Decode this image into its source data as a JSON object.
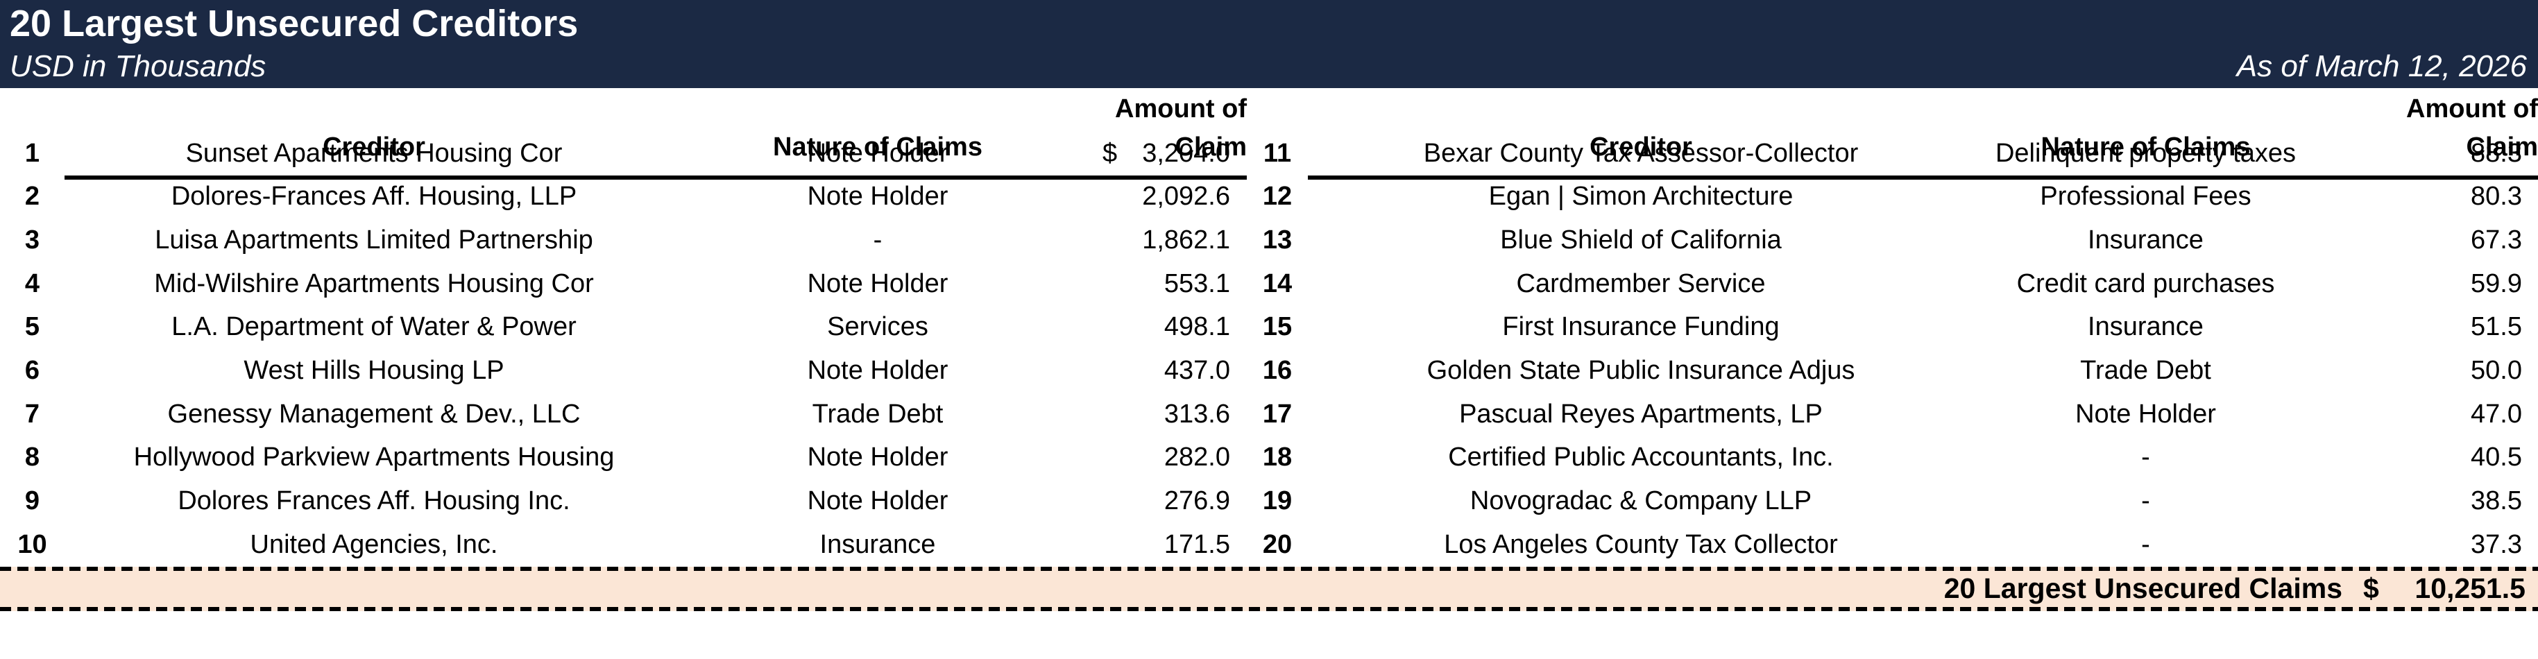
{
  "header": {
    "title": "20 Largest Unsecured Creditors",
    "subtitle": "USD in Thousands",
    "as_of": "As of March 12, 2026"
  },
  "columns": {
    "creditor": "Creditor",
    "nature": "Nature of Claims",
    "amount_line1": "Amount of",
    "amount_line2": "Claim"
  },
  "left_rows": [
    {
      "num": "1",
      "creditor": "Sunset Apartments Housing Cor",
      "nature": "Note Holder",
      "currency": "$",
      "amount": "3,204.0"
    },
    {
      "num": "2",
      "creditor": "Dolores-Frances Aff. Housing, LLP",
      "nature": "Note Holder",
      "currency": "",
      "amount": "2,092.6"
    },
    {
      "num": "3",
      "creditor": "Luisa Apartments Limited Partnership",
      "nature": "-",
      "currency": "",
      "amount": "1,862.1"
    },
    {
      "num": "4",
      "creditor": "Mid-Wilshire Apartments Housing Cor",
      "nature": "Note Holder",
      "currency": "",
      "amount": "553.1"
    },
    {
      "num": "5",
      "creditor": "L.A. Department of Water & Power",
      "nature": "Services",
      "currency": "",
      "amount": "498.1"
    },
    {
      "num": "6",
      "creditor": "West Hills Housing LP",
      "nature": "Note Holder",
      "currency": "",
      "amount": "437.0"
    },
    {
      "num": "7",
      "creditor": "Genessy Management & Dev., LLC",
      "nature": "Trade Debt",
      "currency": "",
      "amount": "313.6"
    },
    {
      "num": "8",
      "creditor": "Hollywood Parkview Apartments Housing",
      "nature": "Note Holder",
      "currency": "",
      "amount": "282.0"
    },
    {
      "num": "9",
      "creditor": "Dolores Frances Aff. Housing Inc.",
      "nature": "Note Holder",
      "currency": "",
      "amount": "276.9"
    },
    {
      "num": "10",
      "creditor": "United Agencies, Inc.",
      "nature": "Insurance",
      "currency": "",
      "amount": "171.5"
    }
  ],
  "right_rows": [
    {
      "num": "11",
      "creditor": "Bexar County Tax Assessor-Collector",
      "nature": "Delinquent property taxes",
      "currency": "",
      "amount": "88.3"
    },
    {
      "num": "12",
      "creditor": "Egan | Simon Architecture",
      "nature": "Professional Fees",
      "currency": "",
      "amount": "80.3"
    },
    {
      "num": "13",
      "creditor": "Blue Shield of California",
      "nature": "Insurance",
      "currency": "",
      "amount": "67.3"
    },
    {
      "num": "14",
      "creditor": "Cardmember Service",
      "nature": "Credit card purchases",
      "currency": "",
      "amount": "59.9"
    },
    {
      "num": "15",
      "creditor": "First Insurance Funding",
      "nature": "Insurance",
      "currency": "",
      "amount": "51.5"
    },
    {
      "num": "16",
      "creditor": "Golden State Public Insurance Adjus",
      "nature": "Trade Debt",
      "currency": "",
      "amount": "50.0"
    },
    {
      "num": "17",
      "creditor": "Pascual Reyes Apartments, LP",
      "nature": "Note Holder",
      "currency": "",
      "amount": "47.0"
    },
    {
      "num": "18",
      "creditor": "Certified Public Accountants, Inc.",
      "nature": "-",
      "currency": "",
      "amount": "40.5"
    },
    {
      "num": "19",
      "creditor": "Novogradac & Company LLP",
      "nature": "-",
      "currency": "",
      "amount": "38.5"
    },
    {
      "num": "20",
      "creditor": "Los Angeles County Tax Collector",
      "nature": "-",
      "currency": "",
      "amount": "37.3"
    }
  ],
  "total": {
    "label": "20 Largest Unsecured Claims",
    "currency": "$",
    "amount": "10,251.5"
  },
  "colors": {
    "header_bg": "#1b2944",
    "header_text": "#ffffff",
    "total_bg": "#fbe6d6",
    "body_text": "#000000"
  }
}
